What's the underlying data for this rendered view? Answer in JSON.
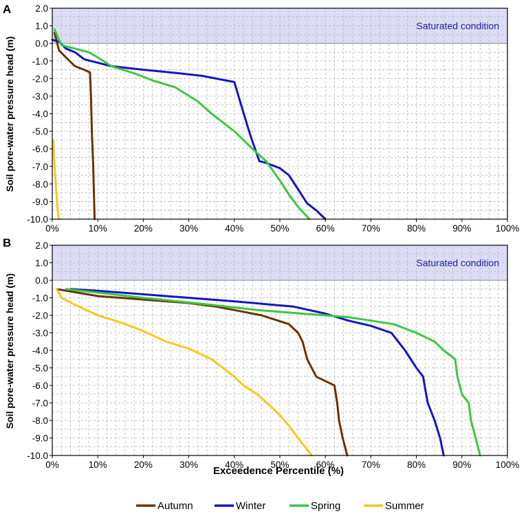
{
  "panels": [
    {
      "label": "A",
      "saturated_label": "Saturated condition"
    },
    {
      "label": "B",
      "saturated_label": "Saturated condition"
    }
  ],
  "legend": [
    {
      "name": "Autumn",
      "color": "#6b3200"
    },
    {
      "name": "Winter",
      "color": "#1414c8"
    },
    {
      "name": "Spring",
      "color": "#3cc83c"
    },
    {
      "name": "Summer",
      "color": "#f5c81e"
    }
  ],
  "colors": {
    "saturated_band": "#dcdcf5",
    "grid": "#b4b4b4"
  },
  "chart_data": [
    {
      "type": "line",
      "title": "",
      "panel": "A",
      "xlabel": "",
      "ylabel": "Soil pore-water pressure head (m)",
      "xlim": [
        0,
        100
      ],
      "ylim": [
        -10,
        2
      ],
      "x_ticks": [
        "0%",
        "10%",
        "20%",
        "30%",
        "40%",
        "50%",
        "60%",
        "70%",
        "80%",
        "90%",
        "100%"
      ],
      "y_ticks": [
        "2.0",
        "1.0",
        "0.0",
        "-1.0",
        "-2.0",
        "-3.0",
        "-4.0",
        "-5.0",
        "-6.0",
        "-7.0",
        "-8.0",
        "-9.0",
        "-10.0"
      ],
      "grid": true,
      "shaded_region": {
        "label": "Saturated condition",
        "y_from": 0,
        "y_to": 2
      },
      "series": [
        {
          "name": "Autumn",
          "color": "#6b3200",
          "x": [
            0.5,
            1.5,
            3,
            5,
            7,
            8.3,
            8.5,
            8.7,
            9,
            9.2,
            9.3
          ],
          "y": [
            0.6,
            -0.4,
            -0.8,
            -1.3,
            -1.5,
            -1.65,
            -3,
            -5,
            -7,
            -9,
            -10
          ]
        },
        {
          "name": "Winter",
          "color": "#1414c8",
          "x": [
            0,
            1.5,
            3,
            5,
            7,
            10,
            13,
            20,
            28,
            33,
            37,
            40,
            41.5,
            43,
            44,
            45.5,
            47,
            50,
            52,
            54,
            56,
            58,
            60
          ],
          "y": [
            0.2,
            0.1,
            -0.3,
            -0.5,
            -0.9,
            -1.1,
            -1.3,
            -1.5,
            -1.7,
            -1.85,
            -2.05,
            -2.2,
            -3.5,
            -4.8,
            -5.6,
            -6.7,
            -6.8,
            -7.1,
            -7.5,
            -8.3,
            -9.1,
            -9.5,
            -10
          ]
        },
        {
          "name": "Spring",
          "color": "#3cc83c",
          "x": [
            0.5,
            2,
            5,
            8,
            10,
            13,
            18,
            22,
            27,
            32,
            35,
            40,
            44,
            47,
            50,
            52,
            54,
            56.5
          ],
          "y": [
            0.8,
            -0.1,
            -0.3,
            -0.5,
            -0.8,
            -1.3,
            -1.7,
            -2.1,
            -2.5,
            -3.3,
            -4,
            -5,
            -6,
            -6.7,
            -7.8,
            -8.6,
            -9.3,
            -10
          ]
        },
        {
          "name": "Summer",
          "color": "#f5c81e",
          "x": [
            0.2,
            0.5,
            0.9,
            1.2,
            1.5
          ],
          "y": [
            -5.5,
            -7,
            -8.5,
            -9.5,
            -10
          ]
        }
      ]
    },
    {
      "type": "line",
      "title": "",
      "panel": "B",
      "xlabel": "Exceedence Percentile (%)",
      "ylabel": "Soil pore-water pressure head (m)",
      "xlim": [
        0,
        100
      ],
      "ylim": [
        -10,
        2
      ],
      "x_ticks": [
        "0%",
        "10%",
        "20%",
        "30%",
        "40%",
        "50%",
        "60%",
        "70%",
        "80%",
        "90%",
        "100%"
      ],
      "y_ticks": [
        "2.0",
        "1.0",
        "0.0",
        "-1.0",
        "-2.0",
        "-3.0",
        "-4.0",
        "-5.0",
        "-6.0",
        "-7.0",
        "-8.0",
        "-9.0",
        "-10.0"
      ],
      "grid": true,
      "shaded_region": {
        "label": "Saturated condition",
        "y_from": 0,
        "y_to": 2
      },
      "series": [
        {
          "name": "Autumn",
          "color": "#6b3200",
          "x": [
            1,
            10,
            20,
            30,
            36,
            40,
            46,
            52,
            54,
            55,
            56,
            58,
            62,
            62.6,
            63,
            63.8,
            64.3,
            64.8
          ],
          "y": [
            -0.5,
            -0.9,
            -1.1,
            -1.3,
            -1.5,
            -1.7,
            -2,
            -2.5,
            -3,
            -3.5,
            -4.5,
            -5.5,
            -6,
            -7,
            -8,
            -9,
            -9.5,
            -10
          ]
        },
        {
          "name": "Winter",
          "color": "#1414c8",
          "x": [
            4,
            10,
            20,
            30,
            40,
            53,
            60,
            65,
            70,
            74.5,
            77.5,
            80,
            81.5,
            81.8,
            82.5,
            84,
            85.2,
            86
          ],
          "y": [
            -0.5,
            -0.6,
            -0.8,
            -1.0,
            -1.2,
            -1.5,
            -1.9,
            -2.3,
            -2.6,
            -3,
            -4,
            -5,
            -5.5,
            -6,
            -7,
            -8,
            -9,
            -10
          ]
        },
        {
          "name": "Spring",
          "color": "#3cc83c",
          "x": [
            3,
            10,
            20,
            35,
            45,
            55,
            65,
            75,
            80,
            84,
            86,
            88.5,
            89,
            89.5,
            90,
            91.5,
            92,
            93,
            94
          ],
          "y": [
            -0.5,
            -0.7,
            -1.0,
            -1.4,
            -1.7,
            -1.9,
            -2.1,
            -2.5,
            -3,
            -3.5,
            -4,
            -4.5,
            -5.5,
            -6,
            -6.5,
            -7,
            -8,
            -9,
            -10
          ]
        },
        {
          "name": "Summer",
          "color": "#f5c81e",
          "x": [
            1,
            2,
            5,
            10,
            15,
            20,
            25,
            30,
            35,
            40,
            42,
            45,
            48,
            50,
            52,
            54,
            55.5,
            57
          ],
          "y": [
            -0.5,
            -1,
            -1.4,
            -2,
            -2.4,
            -2.9,
            -3.5,
            -3.9,
            -4.5,
            -5.5,
            -6,
            -6.5,
            -7.2,
            -7.7,
            -8.3,
            -9,
            -9.5,
            -10
          ]
        }
      ]
    }
  ]
}
